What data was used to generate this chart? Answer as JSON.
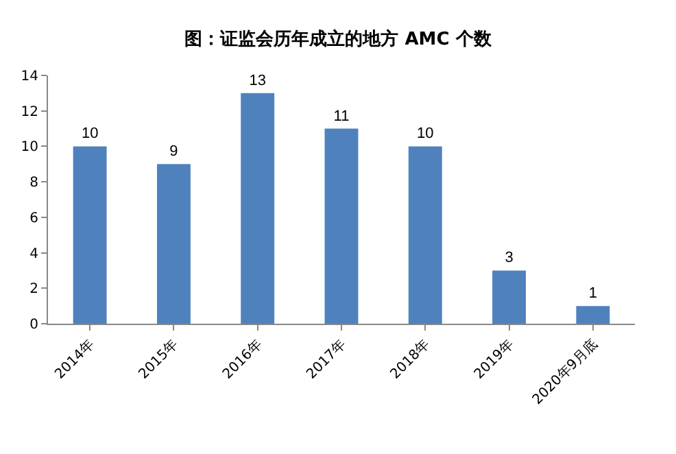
{
  "chart_data": {
    "type": "bar",
    "title": "图：证监会历年成立的地方 AMC 个数",
    "categories": [
      "2014年",
      "2015年",
      "2016年",
      "2017年",
      "2018年",
      "2019年",
      "2020年9月底"
    ],
    "values": [
      10,
      9,
      13,
      11,
      10,
      3,
      1
    ],
    "color": "#4f81bd",
    "ylim": [
      0,
      14
    ],
    "yticks": [
      0,
      2,
      4,
      6,
      8,
      10,
      12,
      14
    ],
    "grid": false,
    "data_labels": true
  }
}
